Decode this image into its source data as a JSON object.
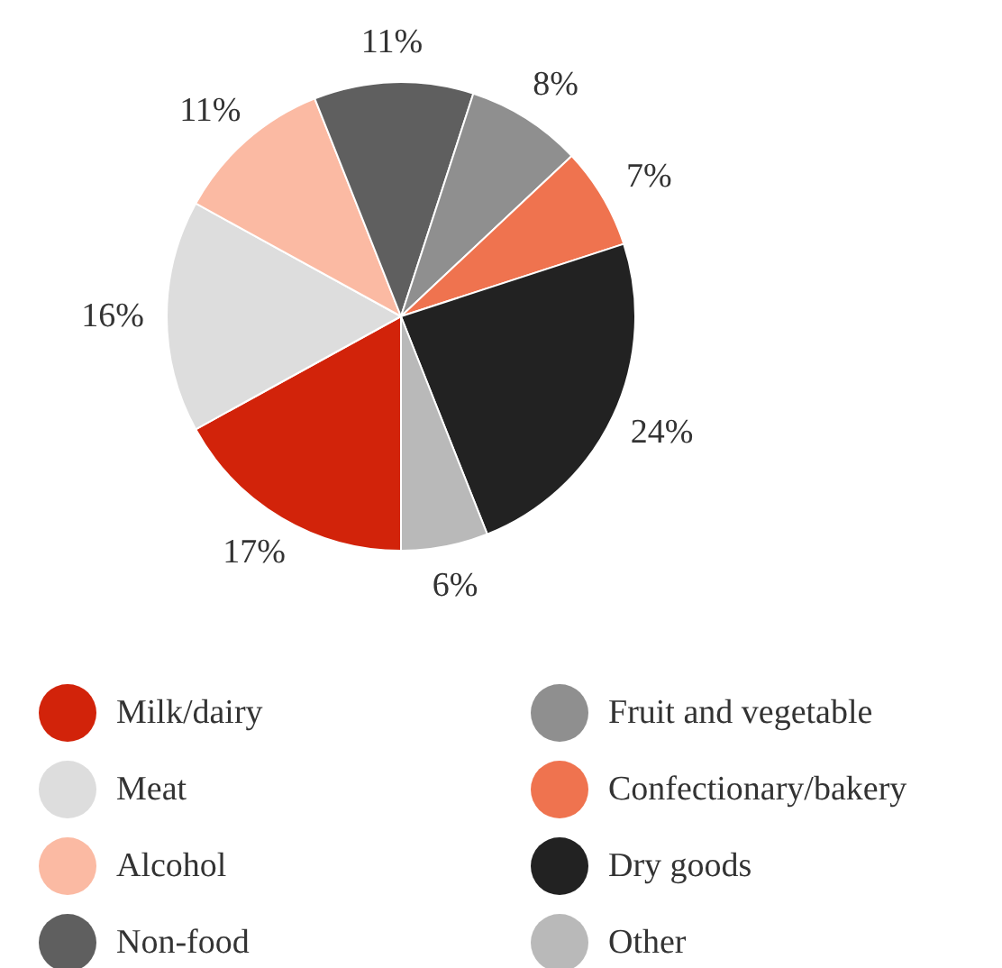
{
  "chart_data": {
    "type": "pie",
    "categories": [
      "Milk/dairy",
      "Meat",
      "Alcohol",
      "Non-food",
      "Fruit and vegetable",
      "Confectionary/bakery",
      "Dry goods",
      "Other"
    ],
    "values": [
      17,
      16,
      11,
      11,
      8,
      7,
      24,
      6
    ],
    "colors": [
      "#d2230a",
      "#dddddd",
      "#fbbaa3",
      "#5f5f5f",
      "#8f8f8f",
      "#ef734f",
      "#222222",
      "#b9b9b9"
    ],
    "value_labels": [
      "17%",
      "16%",
      "11%",
      "11%",
      "8%",
      "7%",
      "24%",
      "6%"
    ],
    "legend": "bottom"
  }
}
